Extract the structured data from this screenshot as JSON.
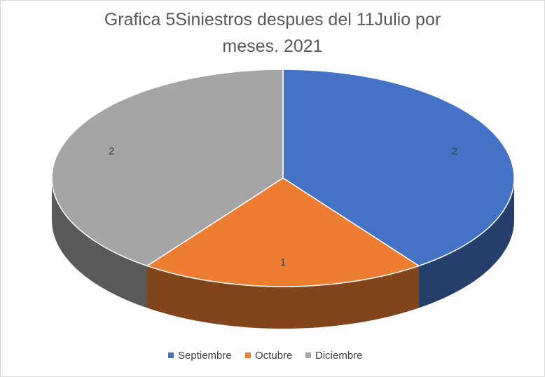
{
  "chart_data": {
    "type": "pie",
    "title": "Grafica 5Siniestros despues  del 11Julio por meses. 2021",
    "categories": [
      "Septiembre",
      "Octubre",
      "Diciembre"
    ],
    "values": [
      2,
      1,
      2
    ],
    "colors": [
      "#4472c4",
      "#ed7d31",
      "#a5a5a5"
    ],
    "legend": "bottom"
  }
}
